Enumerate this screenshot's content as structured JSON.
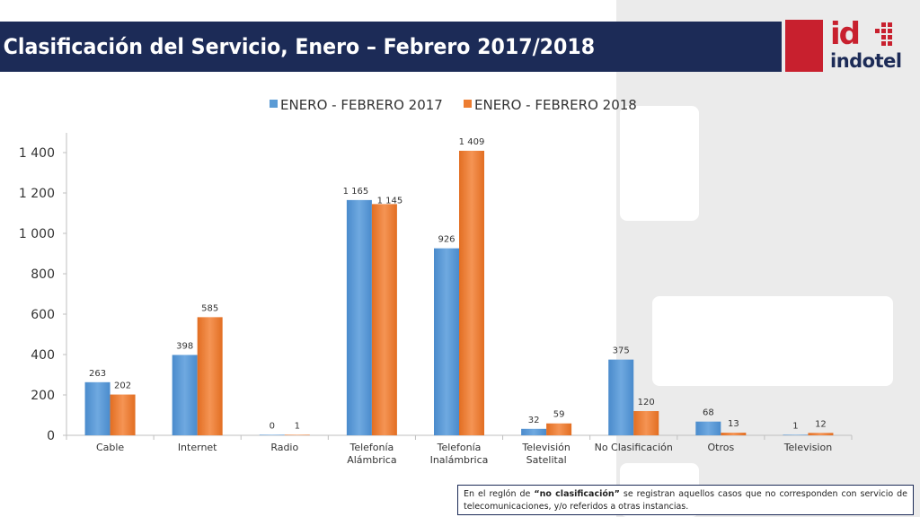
{
  "header": {
    "title": "Clasificación del Servicio, Enero – Febrero 2017/2018"
  },
  "logo": {
    "mark": "id",
    "word": "indotel"
  },
  "colors": {
    "title_bar": "#1c2b57",
    "series_2017": "#5b9bd5",
    "series_2018": "#ed7d31",
    "brand_red": "#c8202e"
  },
  "chart_data": {
    "type": "bar",
    "title": "",
    "xlabel": "",
    "ylabel": "",
    "ylim": [
      0,
      1500
    ],
    "yticks": [
      0,
      200,
      400,
      600,
      800,
      1000,
      1200,
      1400
    ],
    "ytick_labels": [
      "0",
      "200",
      "400",
      "600",
      "800",
      "1 000",
      "1 200",
      "1 400"
    ],
    "grid": false,
    "legend": "top",
    "categories": [
      [
        "Cable"
      ],
      [
        "Internet"
      ],
      [
        "Radio"
      ],
      [
        "Telefonía",
        "Alámbrica"
      ],
      [
        "Telefonía",
        "Inalámbrica"
      ],
      [
        "Televisión",
        "Satelital"
      ],
      [
        "No Clasificación"
      ],
      [
        "Otros"
      ],
      [
        "Television"
      ]
    ],
    "series": [
      {
        "name": "ENERO - FEBRERO 2017",
        "values": [
          263,
          398,
          0,
          1165,
          926,
          32,
          375,
          68,
          1
        ],
        "labels": [
          "263",
          "398",
          "0",
          "1 165",
          "926",
          "32",
          "375",
          "68",
          "1"
        ]
      },
      {
        "name": "ENERO - FEBRERO 2018",
        "values": [
          202,
          585,
          1,
          1145,
          1409,
          59,
          120,
          13,
          12
        ],
        "labels": [
          "202",
          "585",
          "1",
          "1 145",
          "1 409",
          "59",
          "120",
          "13",
          "12"
        ]
      }
    ]
  },
  "note": {
    "prefix": "En el reglón de ",
    "bold": "“no clasificación”",
    "suffix": " se registran aquellos casos que no corresponden con servicio de telecomunicaciones, y/o referidos a otras instancias."
  }
}
